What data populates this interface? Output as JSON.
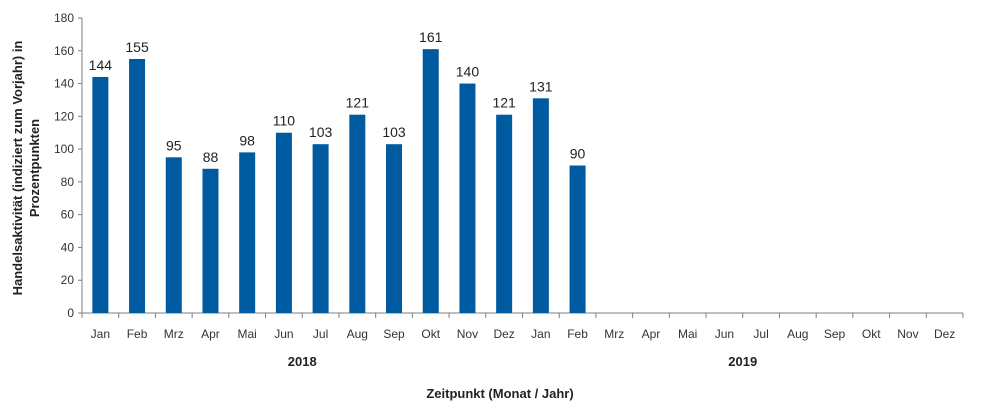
{
  "chart_data": {
    "type": "bar",
    "xlabel": "Zeitpunkt (Monat / Jahr)",
    "ylabel_line1": "Handelsaktivität (indiziert zum Vorjahr) in",
    "ylabel_line2": "Prozentpunkten",
    "ylim": [
      0,
      180
    ],
    "yticks": [
      "0",
      "20",
      "40",
      "60",
      "80",
      "100",
      "120",
      "140",
      "160",
      "180"
    ],
    "grid": false,
    "bar_color": "#005aa0",
    "years": [
      "2018",
      "2019"
    ],
    "categories": [
      "Jan",
      "Feb",
      "Mrz",
      "Apr",
      "Mai",
      "Jun",
      "Jul",
      "Aug",
      "Sep",
      "Okt",
      "Nov",
      "Dez",
      "Jan",
      "Feb",
      "Mrz",
      "Apr",
      "Mai",
      "Jun",
      "Jul",
      "Aug",
      "Sep",
      "Okt",
      "Nov",
      "Dez"
    ],
    "values": [
      144,
      155,
      95,
      88,
      98,
      110,
      103,
      121,
      103,
      161,
      140,
      121,
      131,
      90,
      null,
      null,
      null,
      null,
      null,
      null,
      null,
      null,
      null,
      null
    ]
  }
}
